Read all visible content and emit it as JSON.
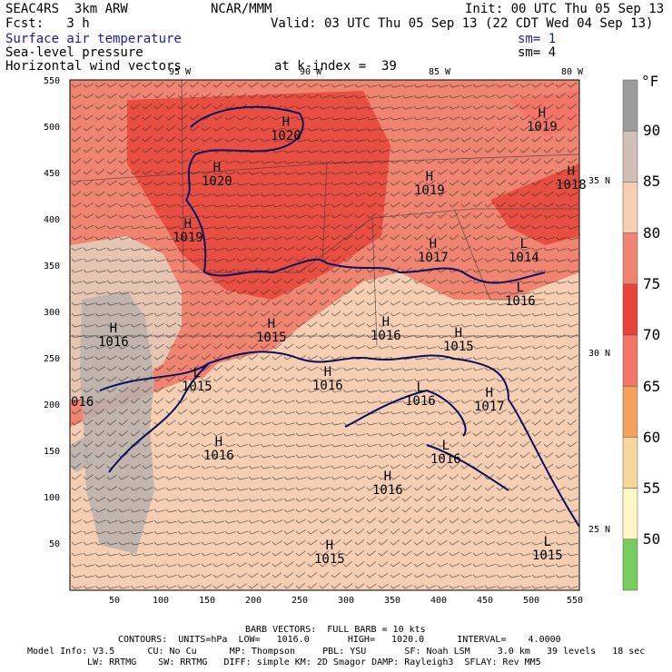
{
  "header": {
    "model": "SEAC4RS  3km ARW",
    "org": "NCAR/MMM",
    "init": "Init: 00 UTC Thu 05 Sep 13",
    "fcst": "Fcst:   3 h",
    "valid": "Valid: 03 UTC Thu 05 Sep 13 (22 CDT Wed 04 Sep 13)",
    "field1": "Surface air temperature",
    "field1_sm": "sm= 1",
    "field2": "Sea-level pressure",
    "field2_sm": "sm= 4",
    "field3": "Horizontal wind vectors",
    "k_index": "at k-index =  39",
    "colors": {
      "field_title": "#1a1aa8",
      "text": "#000000"
    }
  },
  "map": {
    "longitude_labels": [
      "95 W",
      "90 W",
      "85 W",
      "80 W"
    ],
    "latitude_labels": [
      "35 N",
      "30 N",
      "25 N"
    ],
    "x_ticks": [
      "50",
      "100",
      "150",
      "200",
      "250",
      "300",
      "350",
      "400",
      "450",
      "500",
      "550"
    ],
    "y_ticks": [
      "550",
      "500",
      "450",
      "400",
      "350",
      "300",
      "250",
      "200",
      "150",
      "100",
      "50"
    ],
    "pressure_centers": [
      {
        "type": "H",
        "value": "1020"
      },
      {
        "type": "H",
        "value": "1020"
      },
      {
        "type": "H",
        "value": "1019"
      },
      {
        "type": "H",
        "value": "1019"
      },
      {
        "type": "H",
        "value": "1018"
      },
      {
        "type": "H",
        "value": "1019"
      },
      {
        "type": "H",
        "value": "1017"
      },
      {
        "type": "L",
        "value": "1014"
      },
      {
        "type": "L",
        "value": "1016"
      },
      {
        "type": "H",
        "value": "1016"
      },
      {
        "type": "H",
        "value": "1015"
      },
      {
        "type": "L",
        "value": "1015"
      },
      {
        "type": "H",
        "value": "1016"
      },
      {
        "type": "H",
        "value": "1015"
      },
      {
        "type": "H",
        "value": "1016"
      },
      {
        "type": "L",
        "value": "1016"
      },
      {
        "type": "H",
        "value": "1017"
      },
      {
        "type": "L",
        "value": "1016"
      },
      {
        "type": "H",
        "value": "1016"
      },
      {
        "type": "H",
        "value": "1016"
      },
      {
        "type": "H",
        "value": "1015"
      },
      {
        "type": "L",
        "value": "1015"
      }
    ],
    "edge_label": "016"
  },
  "legend": {
    "unit": "°F",
    "labels": [
      "90",
      "85",
      "80",
      "75",
      "70",
      "65",
      "60",
      "55",
      "50"
    ],
    "colors": [
      "#9c9c9c",
      "#d2c0b6",
      "#f6cfb3",
      "#ef8470",
      "#e8443a",
      "#f37567",
      "#f6a05e",
      "#f6d79e",
      "#fff6c8",
      "#76cc5c"
    ]
  },
  "footer": {
    "line1": "BARB VECTORS:  FULL BARB = 10 kts",
    "line2": "CONTOURS:  UNITS=hPa  LOW=   1016.0       HIGH=   1020.0      INTERVAL=    4.0000",
    "line3": "Model Info: V3.5      CU: No Cu      MP: Thompson     PBL: YSU       SF: Noah LSM     3.0 km   39 levels   18 sec",
    "line4": "LW: RRTMG    SW: RRTMG   DIFF: simple KM: 2D Smagor DAMP: Rayleigh3  SFLAY: Rev MM5"
  }
}
